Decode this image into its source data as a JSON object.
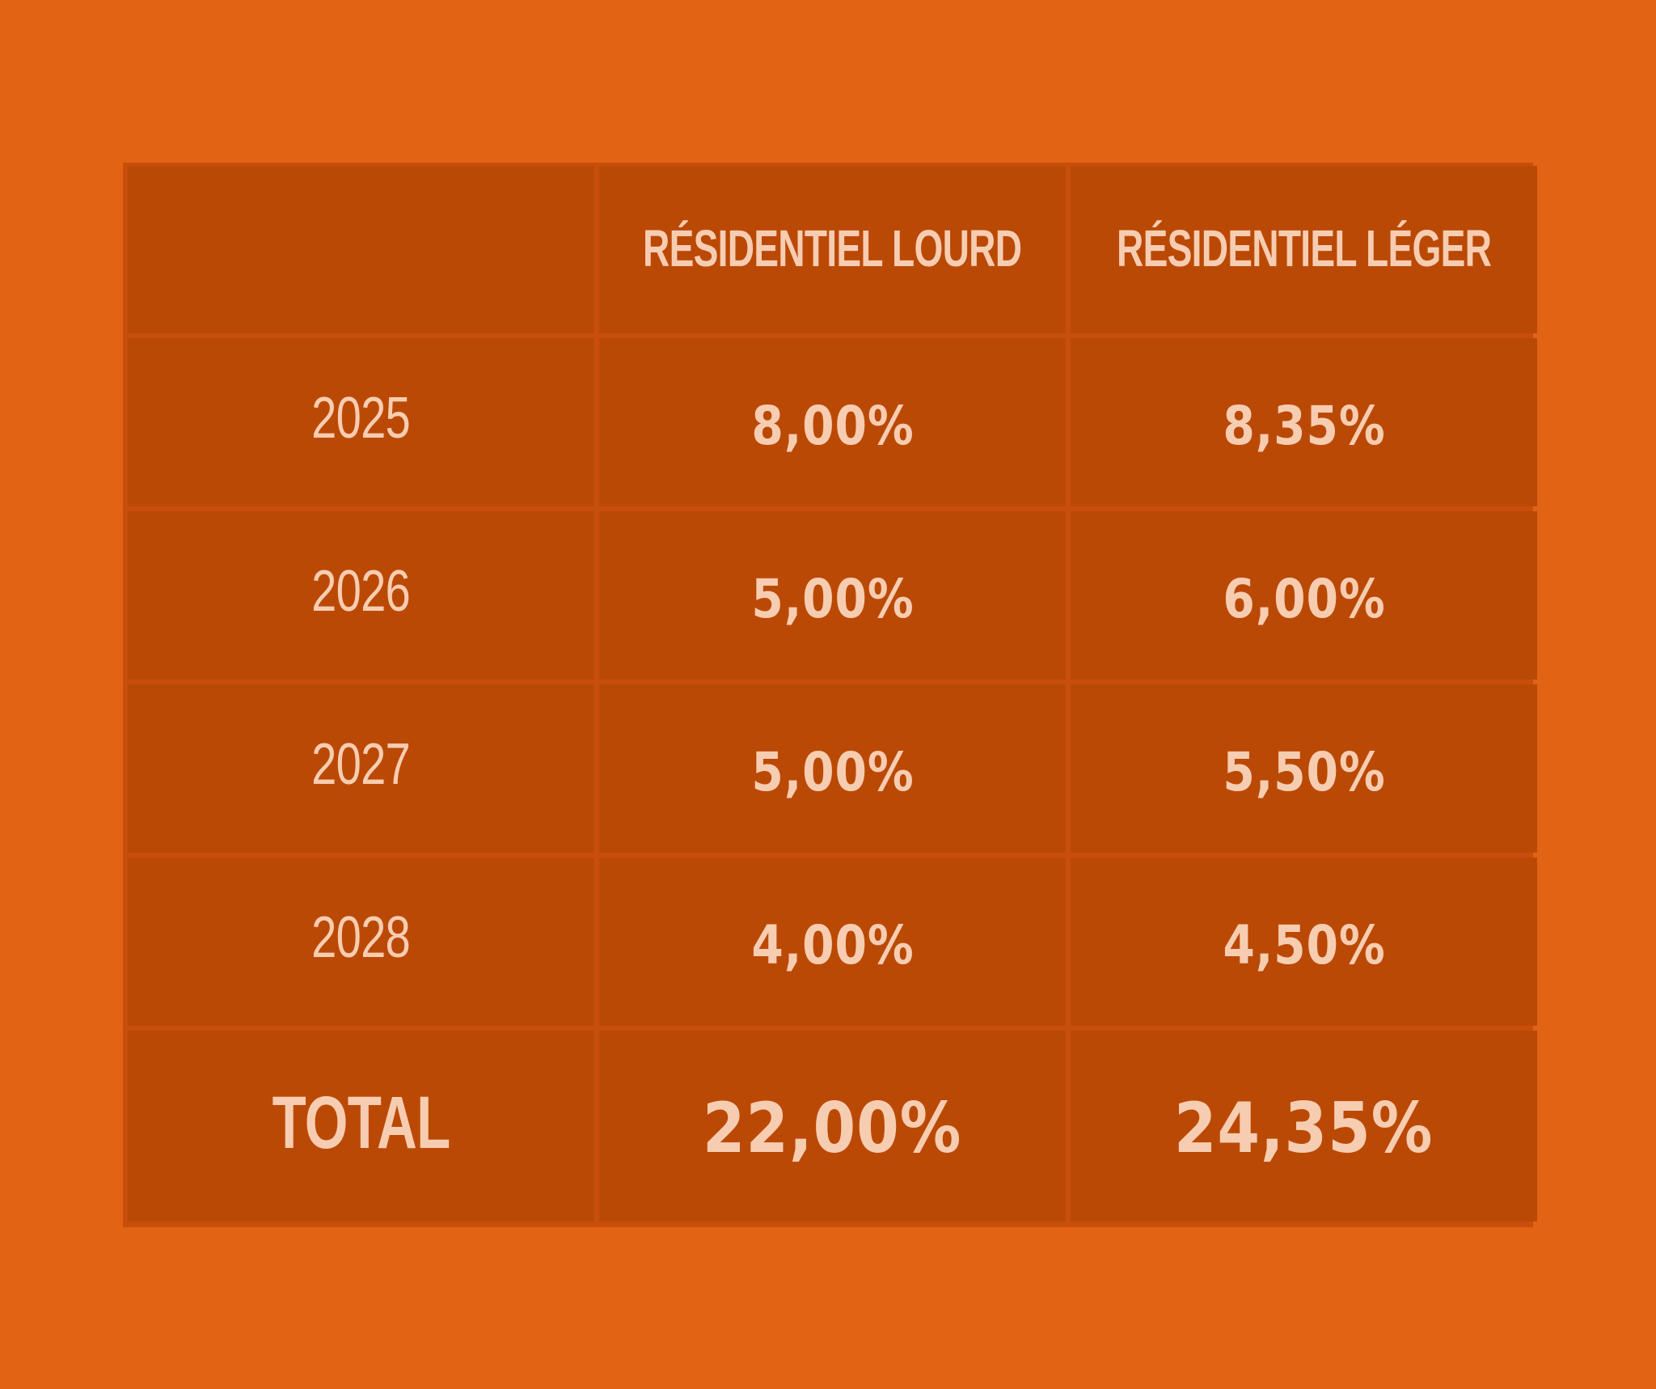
{
  "colors": {
    "background": "#E26314",
    "table_border": "#C84E0B",
    "cell_fill": "#BB4906",
    "text": "#F7CDB1"
  },
  "chart_data": {
    "type": "table",
    "columns": [
      "",
      "RÉSIDENTIEL LOURD",
      "RÉSIDENTIEL LÉGER"
    ],
    "rows": [
      {
        "label": "2025",
        "values": [
          "8,00%",
          "8,35%"
        ]
      },
      {
        "label": "2026",
        "values": [
          "5,00%",
          "6,00%"
        ]
      },
      {
        "label": "2027",
        "values": [
          "5,00%",
          "5,50%"
        ]
      },
      {
        "label": "2028",
        "values": [
          "4,00%",
          "4,50%"
        ]
      }
    ],
    "total": {
      "label": "TOTAL",
      "values": [
        "22,00%",
        "24,35%"
      ]
    }
  }
}
